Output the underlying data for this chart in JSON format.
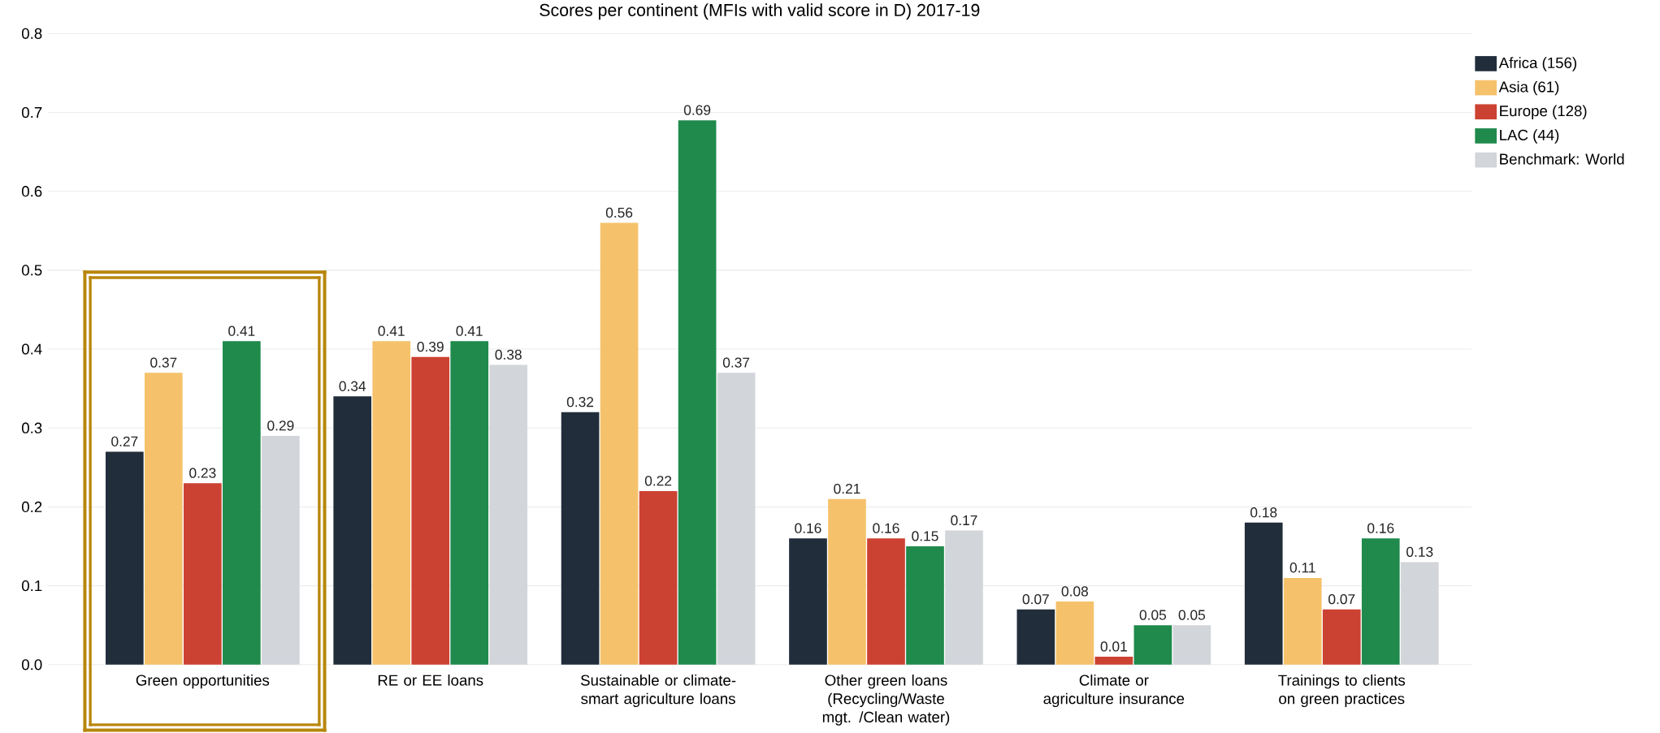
{
  "chart_data": {
    "type": "bar",
    "title": "Scores per continent (MFIs with valid score in D) 2017-19",
    "categories": [
      "Green opportunities",
      "RE or EE loans",
      "Sustainable or climate-smart agriculture loans",
      "Other green loans (Recycling/Waste mgt. /Clean water)",
      "Climate or agriculture insurance",
      "Trainings to clients on green practices"
    ],
    "series": [
      {
        "name": "Africa (156)",
        "color": "#212d3b",
        "values": [
          0.27,
          0.34,
          0.32,
          0.16,
          0.07,
          0.18
        ]
      },
      {
        "name": "Asia (61)",
        "color": "#f5c26b",
        "values": [
          0.37,
          0.41,
          0.56,
          0.21,
          0.08,
          0.11
        ]
      },
      {
        "name": "Europe (128)",
        "color": "#cc4232",
        "values": [
          0.23,
          0.39,
          0.22,
          0.16,
          0.01,
          0.07
        ]
      },
      {
        "name": "LAC (44)",
        "color": "#1f8a4c",
        "values": [
          0.41,
          0.41,
          0.69,
          0.15,
          0.05,
          0.16
        ]
      },
      {
        "name": "Benchmark: World",
        "color": "#d2d5da",
        "values": [
          0.29,
          0.38,
          0.37,
          0.17,
          0.05,
          0.13
        ]
      }
    ],
    "ylim": [
      0,
      0.8
    ],
    "yticks": [
      {
        "value": 0,
        "label": "0.0"
      },
      0.1,
      0.2,
      0.3,
      0.4,
      0.5,
      0.6,
      0.7,
      0.8
    ],
    "grid": "y",
    "legend": "top right",
    "data_labels": true
  }
}
